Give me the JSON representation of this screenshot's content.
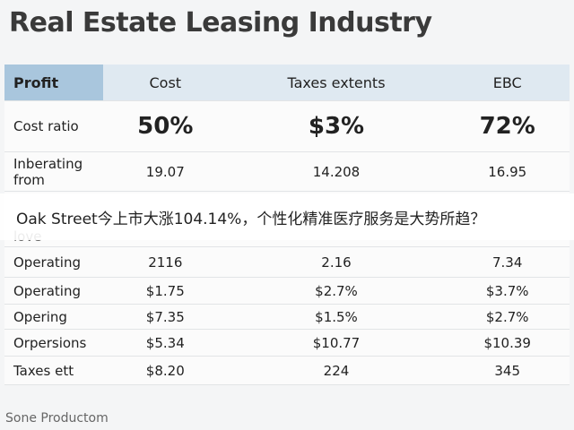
{
  "header": {
    "title": "Real Estate Leasing Industry"
  },
  "table": {
    "columns": [
      "Profit",
      "Cost",
      "Taxes extents",
      "EBC"
    ],
    "rows": [
      [
        "Cost ratio",
        "50%",
        "$3%",
        "72%"
      ],
      [
        "Inberating from",
        "19.07",
        "14.208",
        "16.95"
      ],
      [
        "love"
      ],
      [
        "Operating",
        "2116",
        "2.16",
        "7.34"
      ],
      [
        "Operating",
        "$1.75",
        "$2.7%",
        "$3.7%"
      ],
      [
        "Opering",
        "$7.35",
        "$1.5%",
        "$2.7%"
      ],
      [
        "Orpersions",
        "$5.34",
        "$10.77",
        "$10.39"
      ],
      [
        "Taxes ett",
        "$8.20",
        "224",
        "345"
      ]
    ]
  },
  "banner": {
    "text": "Oak Street今上市大涨104.14%，个性化精准医疗服务是大势所趋？"
  },
  "footer": {
    "text": "Sone Productom"
  }
}
